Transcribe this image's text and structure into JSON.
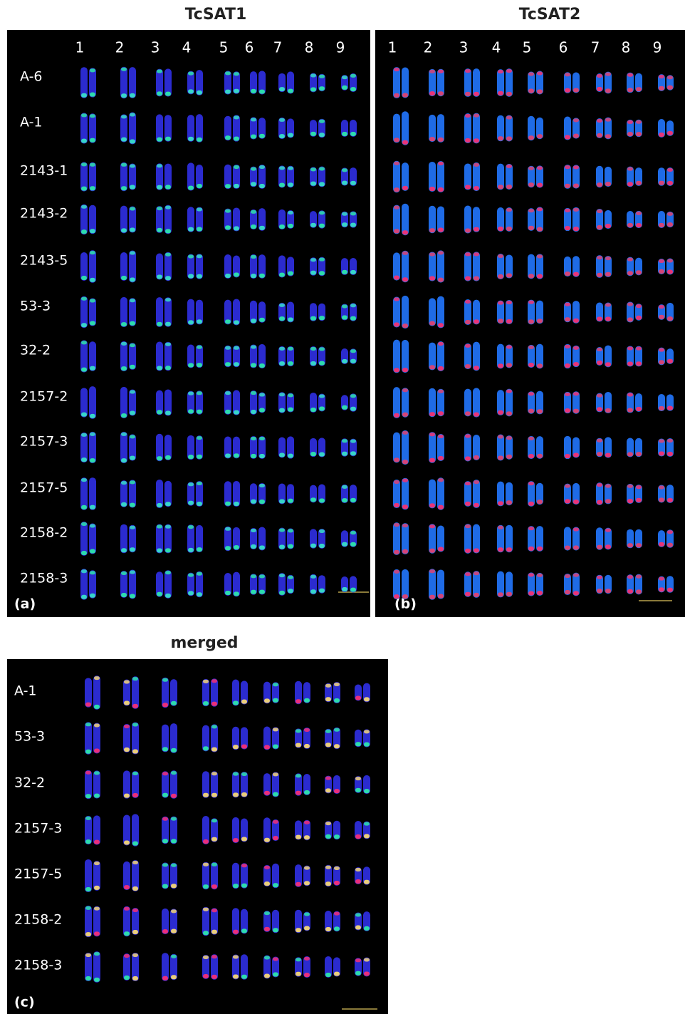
{
  "panels": [
    {
      "title": "TcSAT1",
      "columns": [
        "1",
        "2",
        "3",
        "4",
        "5",
        "6",
        "7",
        "8",
        "9"
      ],
      "rows": [
        "A-6",
        "A-1",
        "2143-1",
        "2143-2",
        "2143-5",
        "53-3",
        "32-2",
        "2157-2",
        "2157-3",
        "2157-5",
        "2158-2",
        "2158-3"
      ],
      "tag": "(a)"
    },
    {
      "title": "TcSAT2",
      "columns": [
        "1",
        "2",
        "3",
        "4",
        "5",
        "6",
        "7",
        "8",
        "9"
      ],
      "tag": "(b)"
    },
    {
      "title": "merged",
      "rows": [
        "A-1",
        "53-3",
        "32-2",
        "2157-3",
        "2157-5",
        "2158-2",
        "2158-3"
      ],
      "tag": "(c)"
    }
  ]
}
